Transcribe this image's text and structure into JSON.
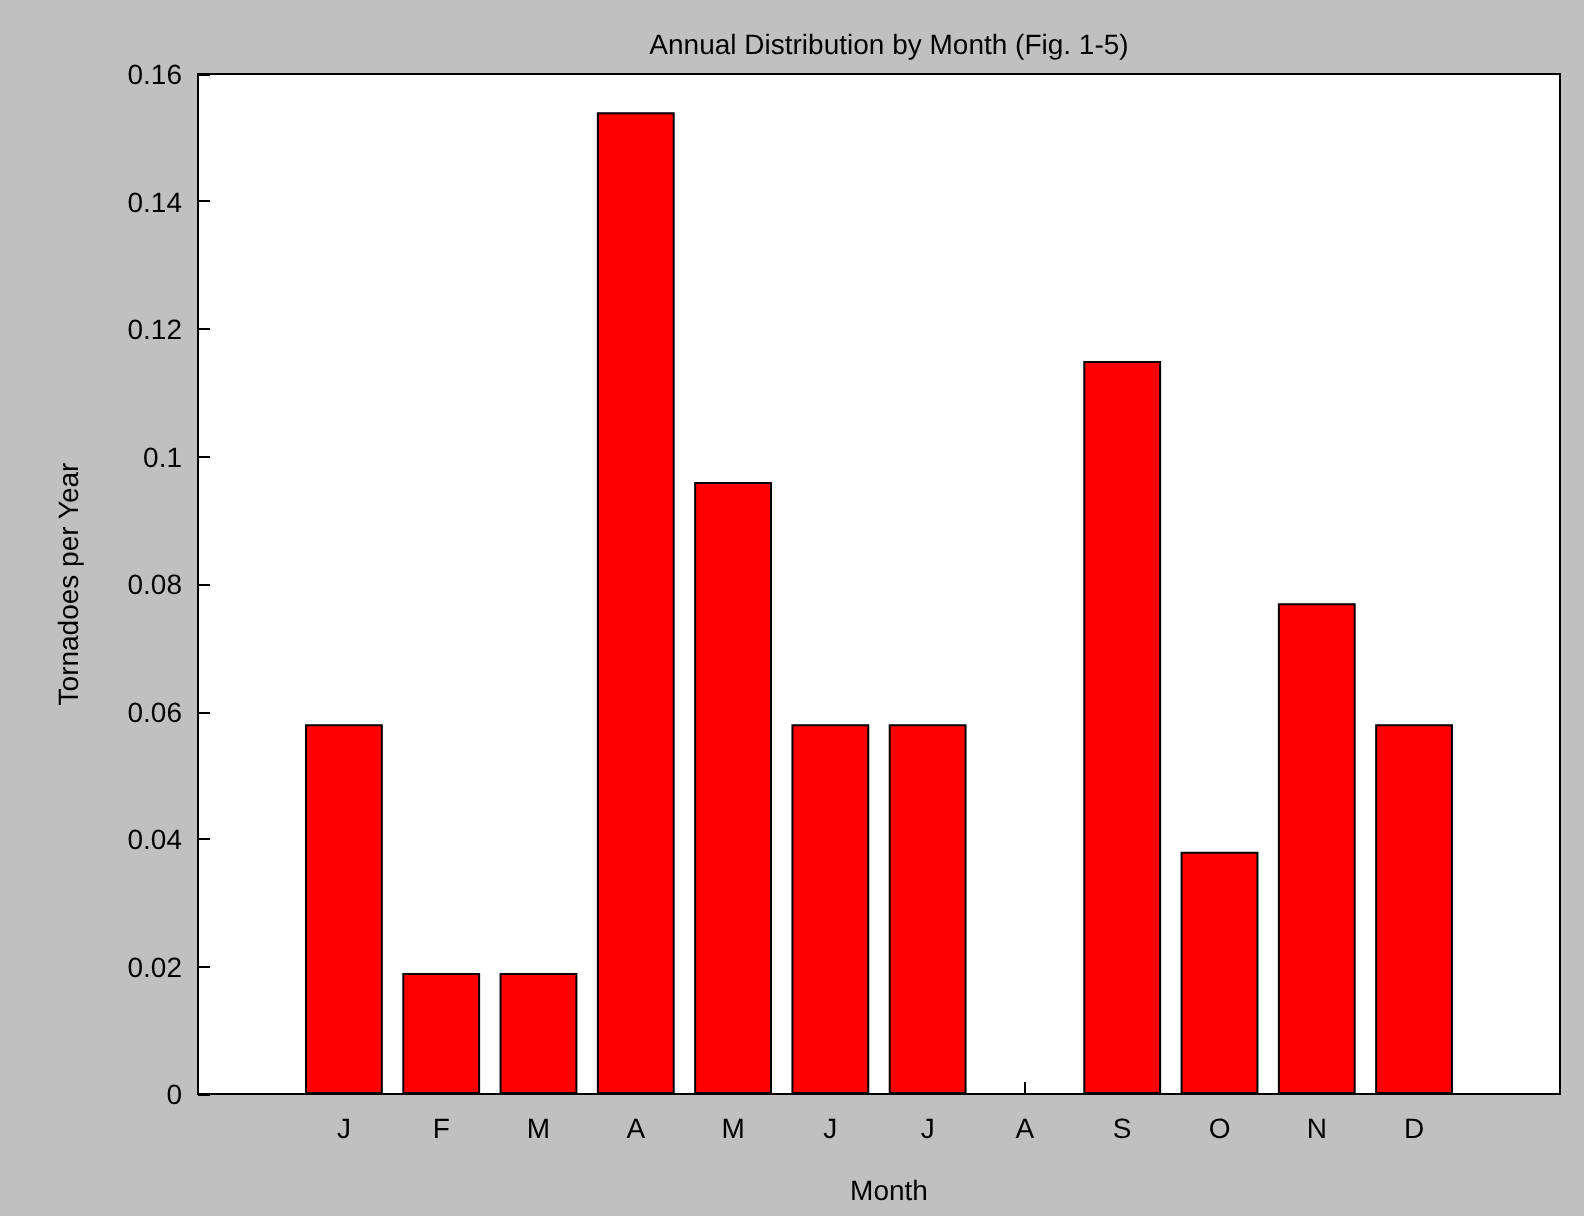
{
  "chart_data": {
    "type": "bar",
    "title": "Annual Distribution by Month (Fig. 1-5)",
    "xlabel": "Month",
    "ylabel": "Tornadoes per Year",
    "categories": [
      "J",
      "F",
      "M",
      "A",
      "M",
      "J",
      "J",
      "A",
      "S",
      "O",
      "N",
      "D"
    ],
    "values": [
      0.058,
      0.019,
      0.019,
      0.154,
      0.096,
      0.058,
      0.058,
      0,
      0.115,
      0.038,
      0.077,
      0.058
    ],
    "color": "#ff0000",
    "ylim": [
      0,
      0.16
    ],
    "yticks": [
      0,
      0.02,
      0.04,
      0.06,
      0.08,
      0.1,
      0.12,
      0.14,
      0.16
    ],
    "grid": false
  }
}
